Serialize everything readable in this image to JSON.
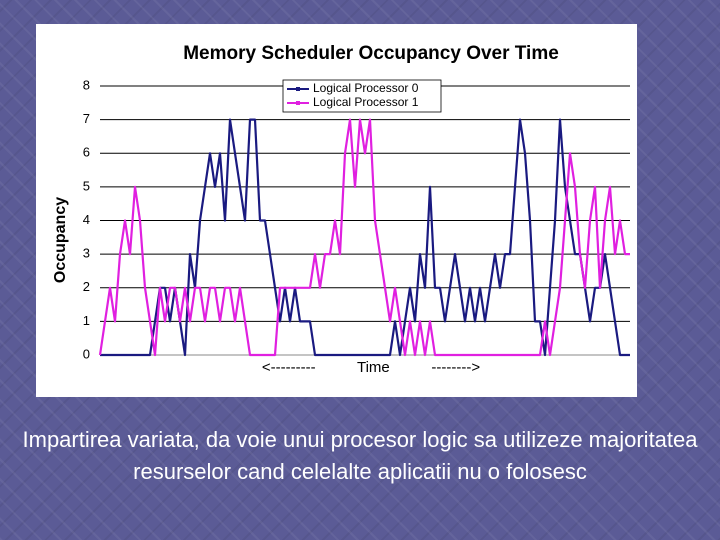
{
  "chart_data": {
    "type": "line",
    "title": "Memory Scheduler Occupancy Over Time",
    "y_label": "Occupancy",
    "x_label": "<---------          Time          -------->",
    "ylim": [
      0,
      8
    ],
    "yticks": [
      0,
      1,
      2,
      3,
      4,
      5,
      6,
      7,
      8
    ],
    "grid": true,
    "legend": "top",
    "series": [
      {
        "name": "Logical Processor 0",
        "color": "#1a1a80",
        "values": [
          0,
          0,
          0,
          0,
          0,
          0,
          0,
          0,
          0,
          0,
          0,
          1,
          2,
          2,
          1,
          2,
          1,
          0,
          3,
          2,
          4,
          5,
          6,
          5,
          6,
          4,
          7,
          6,
          5,
          4,
          7,
          7,
          4,
          4,
          3,
          2,
          1,
          2,
          1,
          2,
          1,
          1,
          1,
          0,
          0,
          0,
          0,
          0,
          0,
          0,
          0,
          0,
          0,
          0,
          0,
          0,
          0,
          0,
          0,
          1,
          0,
          1,
          2,
          1,
          3,
          2,
          5,
          2,
          2,
          1,
          2,
          3,
          2,
          1,
          2,
          1,
          2,
          1,
          2,
          3,
          2,
          3,
          3,
          5,
          7,
          6,
          4,
          1,
          1,
          0,
          2,
          4,
          7,
          5,
          4,
          3,
          3,
          2,
          1,
          2,
          2,
          3,
          2,
          1,
          0,
          0,
          0
        ]
      },
      {
        "name": "Logical Processor 1",
        "color": "#e020e0",
        "values": [
          0,
          1,
          2,
          1,
          3,
          4,
          3,
          5,
          4,
          2,
          1,
          0,
          2,
          1,
          2,
          2,
          1,
          2,
          1,
          2,
          2,
          1,
          2,
          2,
          1,
          2,
          2,
          1,
          2,
          1,
          0,
          0,
          0,
          0,
          0,
          0,
          2,
          2,
          2,
          2,
          2,
          2,
          2,
          3,
          2,
          3,
          3,
          4,
          3,
          6,
          7,
          5,
          7,
          6,
          7,
          4,
          3,
          2,
          1,
          2,
          1,
          0,
          1,
          0,
          1,
          0,
          1,
          0,
          0,
          0,
          0,
          0,
          0,
          0,
          0,
          0,
          0,
          0,
          0,
          0,
          0,
          0,
          0,
          0,
          0,
          0,
          0,
          0,
          0,
          1,
          0,
          1,
          2,
          4,
          6,
          5,
          3,
          2,
          4,
          5,
          2,
          4,
          5,
          3,
          4,
          3,
          3
        ]
      }
    ]
  },
  "caption": "Impartirea variata, da voie unui procesor logic sa utilizeze majoritatea resurselor cand celelalte aplicatii nu o folosesc"
}
